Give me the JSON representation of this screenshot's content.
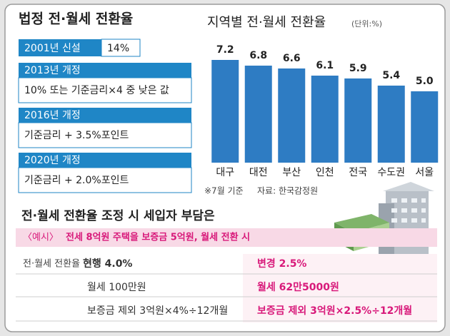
{
  "legal_rate": {
    "title": "법정 전·월세 전환율",
    "items": [
      {
        "label": "2001년 신설",
        "text": "14%"
      },
      {
        "label": "2013년 개정",
        "text": "10% 또는 기준금리×4 중 낮은 값"
      },
      {
        "label": "2016년 개정",
        "text": "기준금리 + 3.5%포인트"
      },
      {
        "label": "2020년 개정",
        "text": "기준금리 + 2.0%포인트"
      }
    ]
  },
  "chart_data": {
    "type": "bar",
    "title": "지역별 전·월세 전환율",
    "unit": "(단위:%)",
    "categories": [
      "대구",
      "대전",
      "부산",
      "인천",
      "전국",
      "수도권",
      "서울"
    ],
    "values": [
      7.2,
      6.8,
      6.6,
      6.1,
      5.9,
      5.4,
      5.0
    ],
    "value_labels": [
      "7.2",
      "6.8",
      "6.6",
      "6.1",
      "5.9",
      "5.4",
      "5.0"
    ],
    "color": "#2e7cc3",
    "notes": [
      "※7월 기준",
      "자료: 한국감정원"
    ]
  },
  "burden": {
    "title": "전·월세 전환율 조정 시 세입자 부담은",
    "example_label": "〈예시〉",
    "example": "전세 8억원 주택을 보증금 5억원, 월세 전환 시",
    "row_label": "전·월세 전환율",
    "rows": [
      [
        "현행 4.0%",
        "변경 2.5%"
      ],
      [
        "월세 100만원",
        "월세 62만5000원"
      ],
      [
        "보증금 제외 3억원×4%÷12개월",
        "보증금 제외 3억원×2.5%÷12개월"
      ]
    ]
  }
}
